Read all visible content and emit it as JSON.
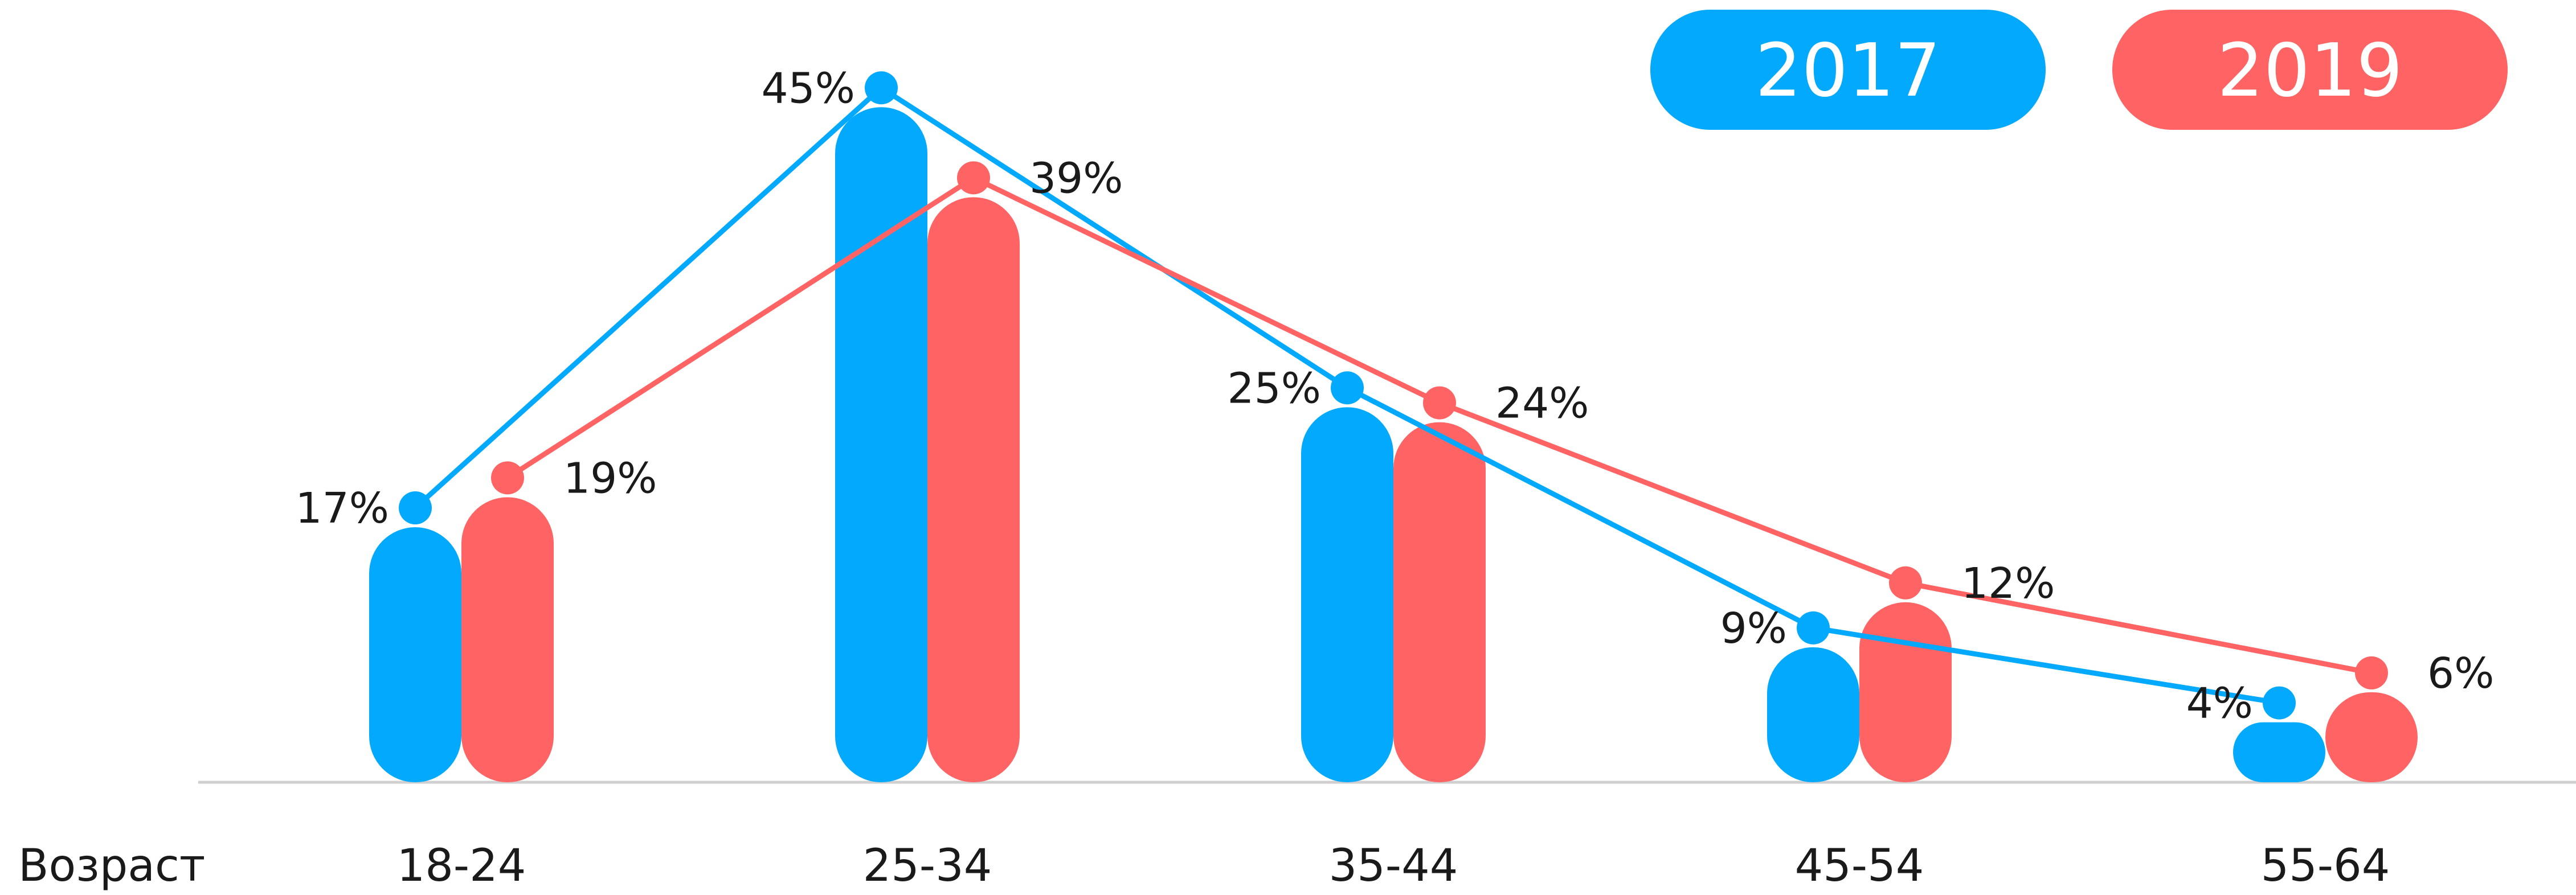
{
  "chart_data": {
    "type": "bar",
    "xlabel": "Возраст",
    "categories": [
      "18-24",
      "25-34",
      "35-44",
      "45-54",
      "55-64"
    ],
    "series": [
      {
        "name": "2017",
        "color": "#03A9FC",
        "values": [
          17,
          45,
          25,
          9,
          4
        ],
        "labels": [
          "17%",
          "45%",
          "25%",
          "9%",
          "4%"
        ]
      },
      {
        "name": "2019",
        "color": "#FF6363",
        "values": [
          19,
          39,
          24,
          12,
          6
        ],
        "labels": [
          "19%",
          "39%",
          "24%",
          "12%",
          "6%"
        ]
      }
    ],
    "overlay": "line",
    "value_unit": "%",
    "legend_position": "top-right",
    "grid": false
  }
}
